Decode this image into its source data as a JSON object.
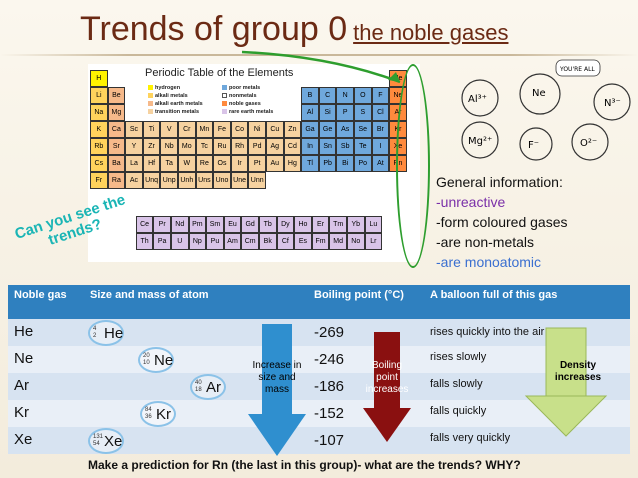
{
  "title": {
    "main": "Trends of group 0",
    "sub": "the noble gases"
  },
  "periodic_table": {
    "title": "Periodic Table of the Elements",
    "legend": [
      "hydrogen",
      "alkali metals",
      "alkali earth metals",
      "transition metals",
      "poor metals",
      "nonmetals",
      "noble gases",
      "rare earth metals"
    ],
    "period1": [
      "H",
      "He"
    ],
    "period2": [
      "Li",
      "Be",
      "B",
      "C",
      "N",
      "O",
      "F",
      "Ne"
    ],
    "period3": [
      "Na",
      "Mg",
      "Al",
      "Si",
      "P",
      "S",
      "Cl",
      "Ar"
    ],
    "period4": [
      "K",
      "Ca",
      "Sc",
      "Ti",
      "V",
      "Cr",
      "Mn",
      "Fe",
      "Co",
      "Ni",
      "Cu",
      "Zn",
      "Ga",
      "Ge",
      "As",
      "Se",
      "Br",
      "Kr"
    ],
    "period5": [
      "Rb",
      "Sr",
      "Y",
      "Zr",
      "Nb",
      "Mo",
      "Tc",
      "Ru",
      "Rh",
      "Pd",
      "Ag",
      "Cd",
      "In",
      "Sn",
      "Sb",
      "Te",
      "I",
      "Xe"
    ],
    "period6": [
      "Cs",
      "Ba",
      "La",
      "Hf",
      "Ta",
      "W",
      "Re",
      "Os",
      "Ir",
      "Pt",
      "Au",
      "Hg",
      "Tl",
      "Pb",
      "Bi",
      "Po",
      "At",
      "Rn"
    ],
    "period7": [
      "Fr",
      "Ra",
      "Ac",
      "Unq",
      "Unp",
      "Unh",
      "Uns",
      "Uno",
      "Une",
      "Unn"
    ],
    "lanthanides": [
      "Ce",
      "Pr",
      "Nd",
      "Pm",
      "Sm",
      "Eu",
      "Gd",
      "Tb",
      "Dy",
      "Ho",
      "Er",
      "Tm",
      "Yb",
      "Lu"
    ],
    "actinides": [
      "Th",
      "Pa",
      "U",
      "Np",
      "Pu",
      "Am",
      "Cm",
      "Bk",
      "Cf",
      "Es",
      "Fm",
      "Md",
      "No",
      "Lr"
    ]
  },
  "general_info": {
    "heading": "General information:",
    "items": [
      "-unreactive",
      "-form coloured gases",
      "-are non-metals",
      "-are monoatomic"
    ]
  },
  "callout": "Can you see the trends?",
  "table": {
    "headers": [
      "Noble gas",
      "Size and mass of atom",
      "Boiling point (°C)",
      "A balloon full of this gas"
    ],
    "rows": [
      {
        "gas": "He",
        "symbol": "He",
        "mass": "4",
        "number": "2",
        "bp": "-269",
        "balloon": "rises quickly into the air"
      },
      {
        "gas": "Ne",
        "symbol": "Ne",
        "mass": "20",
        "number": "10",
        "bp": "-246",
        "balloon": "rises slowly"
      },
      {
        "gas": "Ar",
        "symbol": "Ar",
        "mass": "40",
        "number": "18",
        "bp": "-186",
        "balloon": "falls slowly"
      },
      {
        "gas": "Kr",
        "symbol": "Kr",
        "mass": "84",
        "number": "36",
        "bp": "-152",
        "balloon": "falls quickly"
      },
      {
        "gas": "Xe",
        "symbol": "Xe",
        "mass": "131",
        "number": "54",
        "bp": "-107",
        "balloon": "falls very quickly"
      }
    ],
    "arrow_size": "Increase in size and mass",
    "arrow_bp": "Boiling point increases",
    "arrow_density": "Density increases"
  },
  "footer": "Make a prediction for Rn (the last in this group)- what are the trends? WHY?",
  "colors": {
    "title": "#6b2a14",
    "header_bg": "#2f80bf",
    "arrow_size": "#2f8fcf",
    "arrow_bp": "#8a1010",
    "arrow_density": "#c8e08a",
    "oval": "#2e9e2e"
  }
}
